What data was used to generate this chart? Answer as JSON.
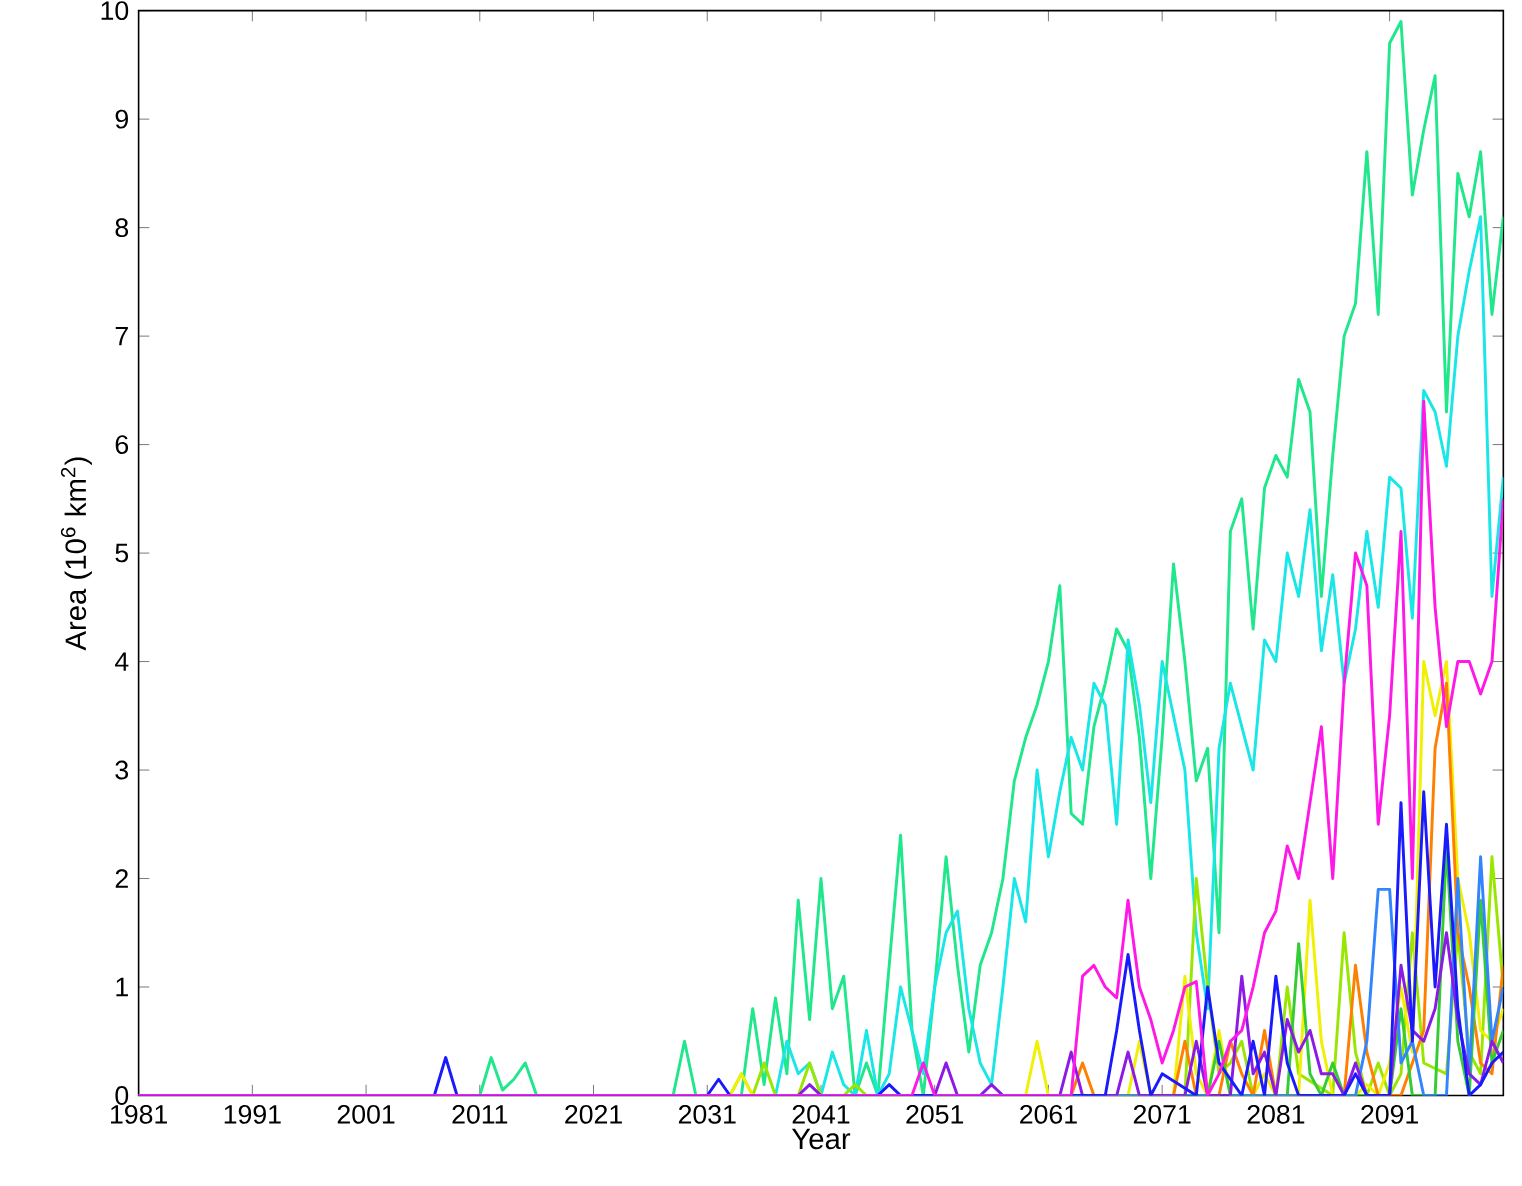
{
  "chart_data": {
    "type": "line",
    "xlabel": "Year",
    "ylabel": "Area (10$^{6}$ km$^{2}$)",
    "xlim": [
      1981,
      2101
    ],
    "ylim": [
      0,
      10
    ],
    "xticks": [
      1981,
      1991,
      2001,
      2011,
      2021,
      2031,
      2041,
      2051,
      2061,
      2071,
      2081,
      2091
    ],
    "yticks": [
      0,
      1,
      2,
      3,
      4,
      5,
      6,
      7,
      8,
      9,
      10
    ],
    "series": [
      {
        "color": "#20e68c",
        "x": [
          1981,
          2011,
          2012,
          2013,
          2014,
          2015,
          2016,
          2028,
          2029,
          2030,
          2034,
          2035,
          2036,
          2037,
          2038,
          2039,
          2040,
          2041,
          2042,
          2043,
          2044,
          2045,
          2046,
          2047,
          2048,
          2049,
          2050,
          2051,
          2052,
          2053,
          2054,
          2055,
          2056,
          2057,
          2058,
          2059,
          2060,
          2061,
          2062,
          2063,
          2064,
          2065,
          2066,
          2067,
          2068,
          2069,
          2070,
          2071,
          2072,
          2073,
          2074,
          2075,
          2076,
          2077,
          2078,
          2079,
          2080,
          2081,
          2082,
          2083,
          2084,
          2085,
          2086,
          2087,
          2088,
          2089,
          2090,
          2091,
          2092,
          2093,
          2094,
          2095,
          2096,
          2097,
          2098,
          2099,
          2100,
          2101
        ],
        "values": [
          0,
          0,
          0.35,
          0.05,
          0.15,
          0.3,
          0,
          0,
          0.5,
          0,
          0,
          0.8,
          0.1,
          0.9,
          0.2,
          1.8,
          0.7,
          2.0,
          0.8,
          1.1,
          0,
          0.3,
          0,
          1.2,
          2.4,
          0.6,
          0,
          1.0,
          2.2,
          1.2,
          0.4,
          1.2,
          1.5,
          2.0,
          2.9,
          3.3,
          3.6,
          4.0,
          4.7,
          2.6,
          2.5,
          3.4,
          3.8,
          4.3,
          4.1,
          3.3,
          2.0,
          3.3,
          4.9,
          4.0,
          2.9,
          3.2,
          1.5,
          5.2,
          5.5,
          4.3,
          5.6,
          5.9,
          5.7,
          6.6,
          6.3,
          4.6,
          5.9,
          7.0,
          7.3,
          8.7,
          7.2,
          9.7,
          9.9,
          8.3,
          8.9,
          9.4,
          6.3,
          8.5,
          8.1,
          8.7,
          7.2,
          8.1
        ]
      },
      {
        "color": "#19e6e6",
        "x": [
          1981,
          2037,
          2038,
          2039,
          2040,
          2041,
          2042,
          2043,
          2044,
          2045,
          2046,
          2047,
          2048,
          2049,
          2050,
          2051,
          2052,
          2053,
          2054,
          2055,
          2056,
          2057,
          2058,
          2059,
          2060,
          2061,
          2062,
          2063,
          2064,
          2065,
          2066,
          2067,
          2068,
          2069,
          2070,
          2071,
          2072,
          2073,
          2074,
          2075,
          2076,
          2077,
          2078,
          2079,
          2080,
          2081,
          2082,
          2083,
          2084,
          2085,
          2086,
          2087,
          2088,
          2089,
          2090,
          2091,
          2092,
          2093,
          2094,
          2095,
          2096,
          2097,
          2098,
          2099,
          2100,
          2101
        ],
        "values": [
          0,
          0,
          0.5,
          0.2,
          0.3,
          0,
          0.4,
          0.1,
          0,
          0.6,
          0,
          0.2,
          1.0,
          0.6,
          0.2,
          1.0,
          1.5,
          1.7,
          0.8,
          0.3,
          0.1,
          1.0,
          2.0,
          1.6,
          3.0,
          2.2,
          2.8,
          3.3,
          3.0,
          3.8,
          3.6,
          2.5,
          4.2,
          3.6,
          2.7,
          4.0,
          3.5,
          3.0,
          1.5,
          0.8,
          3.2,
          3.8,
          3.4,
          3.0,
          4.2,
          4.0,
          5.0,
          4.6,
          5.4,
          4.1,
          4.8,
          3.8,
          4.3,
          5.2,
          4.5,
          5.7,
          5.6,
          4.4,
          6.5,
          6.3,
          5.8,
          7.0,
          7.6,
          8.1,
          4.6,
          5.7
        ]
      },
      {
        "color": "#99e600",
        "x": [
          1981,
          2033,
          2034,
          2035,
          2036,
          2037,
          2039,
          2040,
          2041,
          2043,
          2044,
          2045,
          2073,
          2074,
          2075,
          2076,
          2077,
          2078,
          2079,
          2081,
          2082,
          2083,
          2086,
          2087,
          2088,
          2089,
          2090,
          2091,
          2092,
          2093,
          2094,
          2096,
          2097,
          2098,
          2099,
          2100,
          2101
        ],
        "values": [
          0,
          0,
          0.2,
          0,
          0.3,
          0,
          0,
          0.3,
          0,
          0,
          0.1,
          0,
          0,
          2.0,
          1.0,
          0.2,
          0.3,
          0.5,
          0,
          0,
          1.0,
          0.2,
          0,
          1.5,
          0.4,
          0,
          0.3,
          0,
          0.2,
          1.5,
          0.3,
          0.2,
          1.5,
          0.4,
          0.2,
          2.2,
          1.0
        ]
      },
      {
        "color": "#f0f000",
        "x": [
          1981,
          2033,
          2034,
          2035,
          2059,
          2060,
          2061,
          2068,
          2069,
          2070,
          2072,
          2073,
          2074,
          2075,
          2076,
          2077,
          2079,
          2080,
          2081,
          2083,
          2084,
          2085,
          2086,
          2088,
          2089,
          2090,
          2091,
          2092,
          2093,
          2094,
          2095,
          2096,
          2097,
          2098,
          2099,
          2100,
          2101
        ],
        "values": [
          0,
          0,
          0.2,
          0,
          0,
          0.5,
          0,
          0,
          0.5,
          0,
          0,
          1.1,
          0.2,
          0,
          0.6,
          0,
          0,
          0.2,
          0,
          0,
          1.8,
          0.5,
          0,
          0,
          0.1,
          0,
          0.3,
          1.0,
          0.4,
          4.0,
          3.5,
          4.0,
          2.0,
          1.5,
          0.6,
          0.5,
          0.8
        ]
      },
      {
        "color": "#ff8000",
        "x": [
          1981,
          2063,
          2064,
          2065,
          2072,
          2073,
          2074,
          2076,
          2077,
          2078,
          2079,
          2080,
          2081,
          2087,
          2088,
          2089,
          2090,
          2092,
          2093,
          2094,
          2095,
          2096,
          2097,
          2098,
          2099,
          2100,
          2101
        ],
        "values": [
          0,
          0,
          0.3,
          0,
          0,
          0.5,
          0,
          0,
          0.5,
          0.2,
          0,
          0.6,
          0,
          0,
          1.2,
          0.4,
          0,
          0,
          0.3,
          0.6,
          3.2,
          3.8,
          1.5,
          1.0,
          0.3,
          0.2,
          1.2
        ]
      },
      {
        "color": "#33cc33",
        "x": [
          1981,
          2075,
          2076,
          2077,
          2082,
          2083,
          2084,
          2085,
          2086,
          2087,
          2091,
          2092,
          2093,
          2095,
          2096,
          2097,
          2098,
          2099,
          2100,
          2101
        ],
        "values": [
          0,
          0,
          0.5,
          0,
          0,
          1.4,
          0.2,
          0,
          0.3,
          0,
          0,
          0.8,
          0,
          0,
          2.3,
          0.5,
          0,
          1.8,
          0.3,
          0.6
        ]
      },
      {
        "color": "#3385ff",
        "x": [
          1981,
          2088,
          2089,
          2090,
          2091,
          2092,
          2093,
          2094,
          2096,
          2097,
          2098,
          2099,
          2100,
          2101
        ],
        "values": [
          0,
          0,
          0.5,
          1.9,
          1.9,
          0.3,
          0.5,
          0,
          0,
          2.0,
          0.2,
          2.2,
          0.5,
          1.0
        ]
      },
      {
        "color": "#8c1ae6",
        "x": [
          1981,
          2039,
          2040,
          2041,
          2051,
          2052,
          2053,
          2055,
          2056,
          2057,
          2062,
          2063,
          2064,
          2067,
          2068,
          2069,
          2073,
          2074,
          2075,
          2077,
          2078,
          2079,
          2080,
          2081,
          2082,
          2083,
          2084,
          2085,
          2086,
          2087,
          2088,
          2089,
          2091,
          2092,
          2093,
          2094,
          2095,
          2096,
          2097,
          2098,
          2099,
          2100,
          2101
        ],
        "values": [
          0,
          0,
          0.1,
          0,
          0,
          0.3,
          0,
          0,
          0.1,
          0,
          0,
          0.4,
          0,
          0,
          0.4,
          0,
          0,
          0.5,
          0,
          0,
          1.1,
          0.2,
          0.4,
          0,
          0.7,
          0.4,
          0.6,
          0.2,
          0.2,
          0,
          0.3,
          0,
          0,
          1.2,
          0.6,
          0.5,
          0.8,
          1.5,
          0.7,
          0.2,
          0.1,
          0.5,
          0.3
        ]
      },
      {
        "color": "#1a1aff",
        "x": [
          1981,
          2007,
          2008,
          2009,
          2031,
          2032,
          2033,
          2046,
          2047,
          2048,
          2066,
          2067,
          2068,
          2069,
          2070,
          2071,
          2074,
          2075,
          2076,
          2078,
          2079,
          2080,
          2081,
          2082,
          2083,
          2087,
          2088,
          2089,
          2091,
          2092,
          2093,
          2094,
          2095,
          2096,
          2097,
          2098,
          2099,
          2100,
          2101
        ],
        "values": [
          0,
          0,
          0.35,
          0,
          0,
          0.15,
          0,
          0,
          0.1,
          0,
          0,
          0.6,
          1.3,
          0.6,
          0,
          0.2,
          0,
          1.0,
          0.3,
          0,
          0.5,
          0,
          1.1,
          0.3,
          0,
          0,
          0.2,
          0,
          0,
          2.7,
          0.5,
          2.8,
          1.0,
          2.5,
          0.8,
          0,
          0.1,
          0.3,
          0.4
        ]
      },
      {
        "color": "#ff19e6",
        "x": [
          1981,
          2049,
          2050,
          2051,
          2063,
          2064,
          2065,
          2066,
          2067,
          2068,
          2069,
          2070,
          2071,
          2072,
          2073,
          2074,
          2075,
          2076,
          2077,
          2078,
          2079,
          2080,
          2081,
          2082,
          2083,
          2084,
          2085,
          2086,
          2087,
          2088,
          2089,
          2090,
          2091,
          2092,
          2093,
          2094,
          2095,
          2096,
          2097,
          2098,
          2099,
          2100,
          2101
        ],
        "values": [
          0,
          0,
          0.3,
          0,
          0,
          1.1,
          1.2,
          1.0,
          0.9,
          1.8,
          1.0,
          0.7,
          0.3,
          0.6,
          1.0,
          1.05,
          0,
          0.2,
          0.5,
          0.6,
          1.0,
          1.5,
          1.7,
          2.3,
          2.0,
          2.7,
          3.4,
          2.0,
          3.8,
          5.0,
          4.7,
          2.5,
          3.5,
          5.2,
          2.0,
          6.4,
          4.5,
          3.4,
          4.0,
          4.0,
          3.7,
          4.0,
          5.5
        ]
      }
    ]
  }
}
